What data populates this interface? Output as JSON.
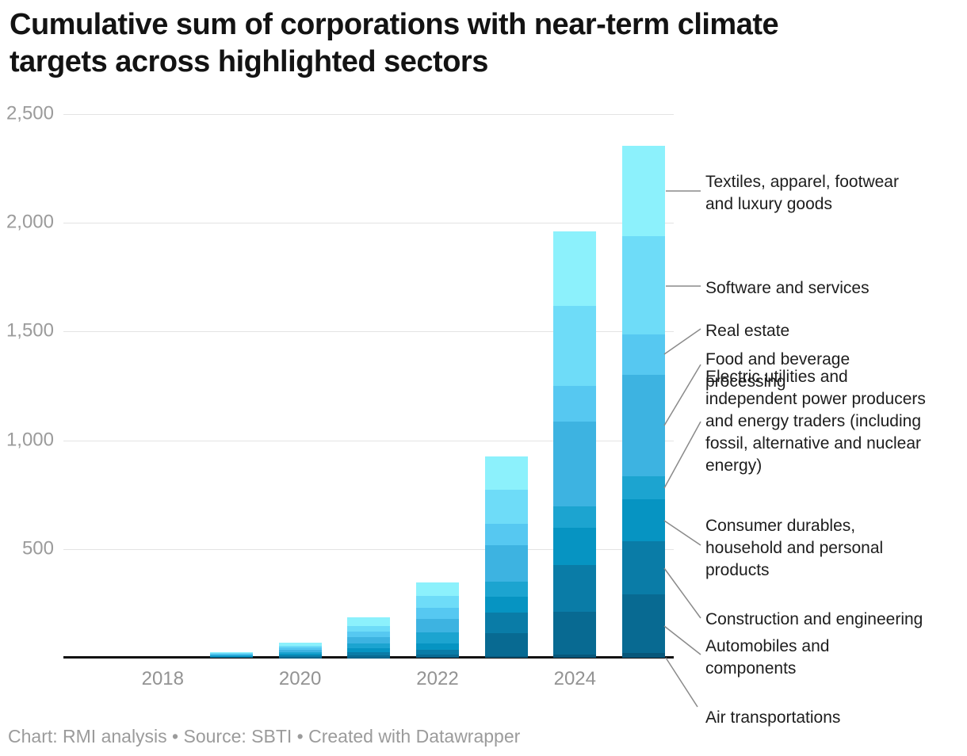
{
  "header": {
    "title": "Cumulative sum of corporations with near-term climate\ntargets across highlighted sectors"
  },
  "footer": {
    "credit": "Chart: RMI analysis • Source: SBTI • Created with Datawrapper"
  },
  "colors": {
    "background": "#ffffff",
    "gridline": "#e3e3e3",
    "axis_line": "#111111",
    "leader_line": "#8a8a8a",
    "tick_text": "#9b9b9b",
    "annotation_text": "#1d1d1d"
  },
  "chart_data": {
    "type": "bar",
    "stacked": true,
    "title": "Cumulative sum of corporations with near-term climate targets across highlighted sectors",
    "xlabel": "",
    "ylabel": "",
    "ylim": [
      0,
      2500
    ],
    "grid": "horizontal",
    "legend_position": "right-side annotations with leader lines",
    "x": [
      2017,
      2018,
      2019,
      2020,
      2021,
      2022,
      2023,
      2024,
      2025
    ],
    "x_tick_years": [
      2018,
      2020,
      2022,
      2024
    ],
    "x_tick_labels": [
      "2018",
      "2020",
      "2022",
      "2024"
    ],
    "y_tick_values": [
      500,
      1000,
      1500,
      2000,
      2500
    ],
    "y_tick_labels": [
      "500",
      "1,000",
      "1,500",
      "2,000",
      "2,500"
    ],
    "totals_by_year": [
      0,
      0,
      27,
      71,
      186,
      347,
      926,
      1962,
      2354
    ],
    "series": [
      {
        "name": "Air transportations",
        "color": "#07577a",
        "values": [
          0,
          0,
          0,
          1,
          1,
          2,
          6,
          15,
          22
        ]
      },
      {
        "name": "Automobiles and components",
        "color": "#086a92",
        "values": [
          0,
          0,
          2,
          4,
          9,
          14,
          106,
          195,
          270
        ]
      },
      {
        "name": "Construction and engineering",
        "color": "#0a7ca7",
        "values": [
          0,
          0,
          2,
          6,
          14,
          20,
          95,
          215,
          243
        ]
      },
      {
        "name": "Consumer durables, household and personal products",
        "color": "#0694c2",
        "values": [
          0,
          0,
          3,
          7,
          19,
          31,
          75,
          174,
          194
        ]
      },
      {
        "name": "Electric utilities and independent power producers and energy traders (including fossil, alternative and nuclear energy)",
        "color": "#1ca4d0",
        "values": [
          0,
          0,
          3,
          8,
          21,
          48,
          67,
          97,
          106
        ]
      },
      {
        "name": "Food and beverage processing",
        "color": "#3db3e1",
        "values": [
          0,
          0,
          4,
          11,
          30,
          65,
          170,
          391,
          466
        ]
      },
      {
        "name": "Real estate",
        "color": "#56c8f1",
        "values": [
          0,
          0,
          3,
          9,
          25,
          51,
          98,
          164,
          187
        ]
      },
      {
        "name": "Software and services",
        "color": "#6edcf8",
        "values": [
          0,
          0,
          4,
          10,
          27,
          54,
          154,
          367,
          452
        ]
      },
      {
        "name": "Textiles, apparel, footwear and luxury goods",
        "color": "#8cf1fc",
        "values": [
          0,
          0,
          6,
          15,
          40,
          62,
          155,
          344,
          414
        ]
      }
    ],
    "annotations": [
      {
        "text": "Textiles, apparel, footwear\nand luxury goods",
        "top": 216,
        "leader": [
          840,
          241,
          884,
          241
        ]
      },
      {
        "text": "Software and services",
        "top": 350,
        "leader": [
          840,
          361,
          884,
          361
        ]
      },
      {
        "text": "Real estate",
        "top": 404,
        "leader": [
          838,
          447,
          884,
          415
        ]
      },
      {
        "text": "Food and beverage\nprocessing",
        "top": 440,
        "leader": [
          838,
          537,
          884,
          460
        ]
      },
      {
        "text": "Electric utilities and\nindependent power producers\nand energy traders (including\nfossil, alternative and nuclear\nenergy)",
        "top": 462,
        "leader": [
          838,
          616,
          884,
          532
        ]
      },
      {
        "text": "Consumer durables,\nhousehold and personal\nproducts",
        "top": 650,
        "leader": [
          838,
          657,
          884,
          688
        ]
      },
      {
        "text": "Construction and engineering",
        "top": 768,
        "leader": [
          838,
          717,
          884,
          780
        ]
      },
      {
        "text": "Automobiles and\ncomponents",
        "top": 802,
        "leader": [
          838,
          790,
          884,
          826
        ]
      },
      {
        "text": "Air transportations",
        "top": 892,
        "leader": [
          840,
          830,
          880,
          892
        ]
      }
    ]
  }
}
